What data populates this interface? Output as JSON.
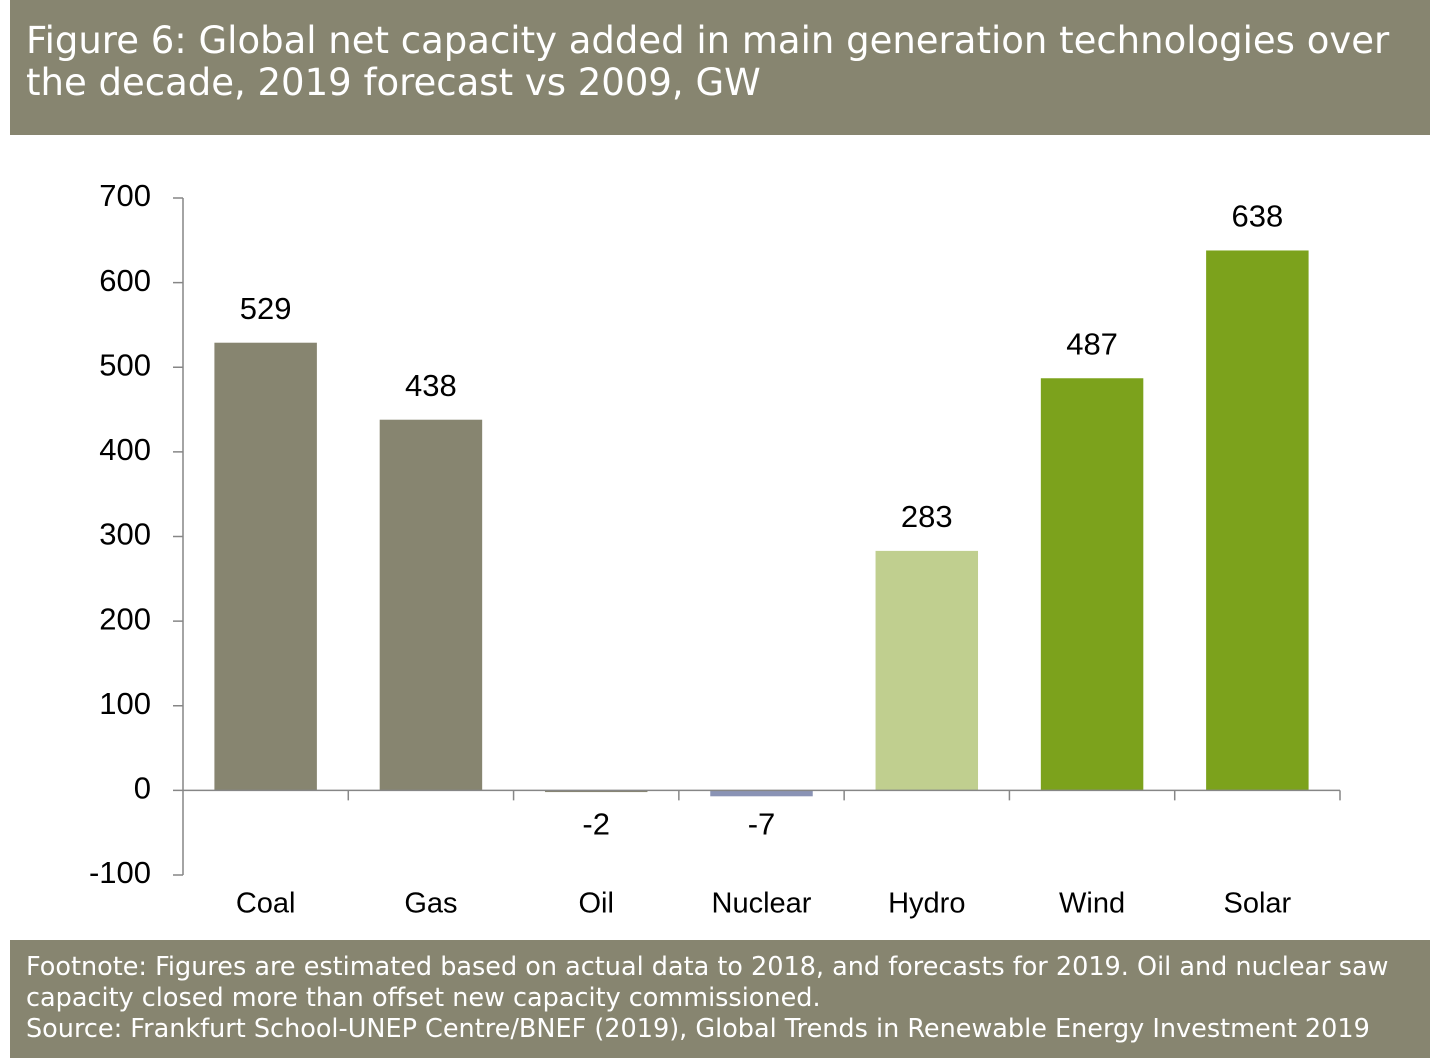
{
  "chart_data": {
    "type": "bar",
    "title": "Figure 6: Global net capacity added in main generation technologies over the decade, 2019 forecast vs 2009, GW",
    "categories": [
      "Coal",
      "Gas",
      "Oil",
      "Nuclear",
      "Hydro",
      "Wind",
      "Solar"
    ],
    "values": [
      529,
      438,
      -2,
      -7,
      283,
      487,
      638
    ],
    "colors": [
      "#878570",
      "#878570",
      "#878570",
      "#8a93b5",
      "#c0cf8f",
      "#7ca21c",
      "#7ca21c"
    ],
    "ylim": [
      -100,
      700
    ],
    "yticks": [
      -100,
      0,
      100,
      200,
      300,
      400,
      500,
      600,
      700
    ],
    "grid": false,
    "footnote": "Footnote: Figures are estimated based on actual data to 2018, and forecasts for 2019. Oil and nuclear saw capacity closed more than offset new capacity commissioned.",
    "source": "Source: Frankfurt School-UNEP Centre/BNEF (2019), Global Trends in Renewable Energy Investment 2019"
  }
}
